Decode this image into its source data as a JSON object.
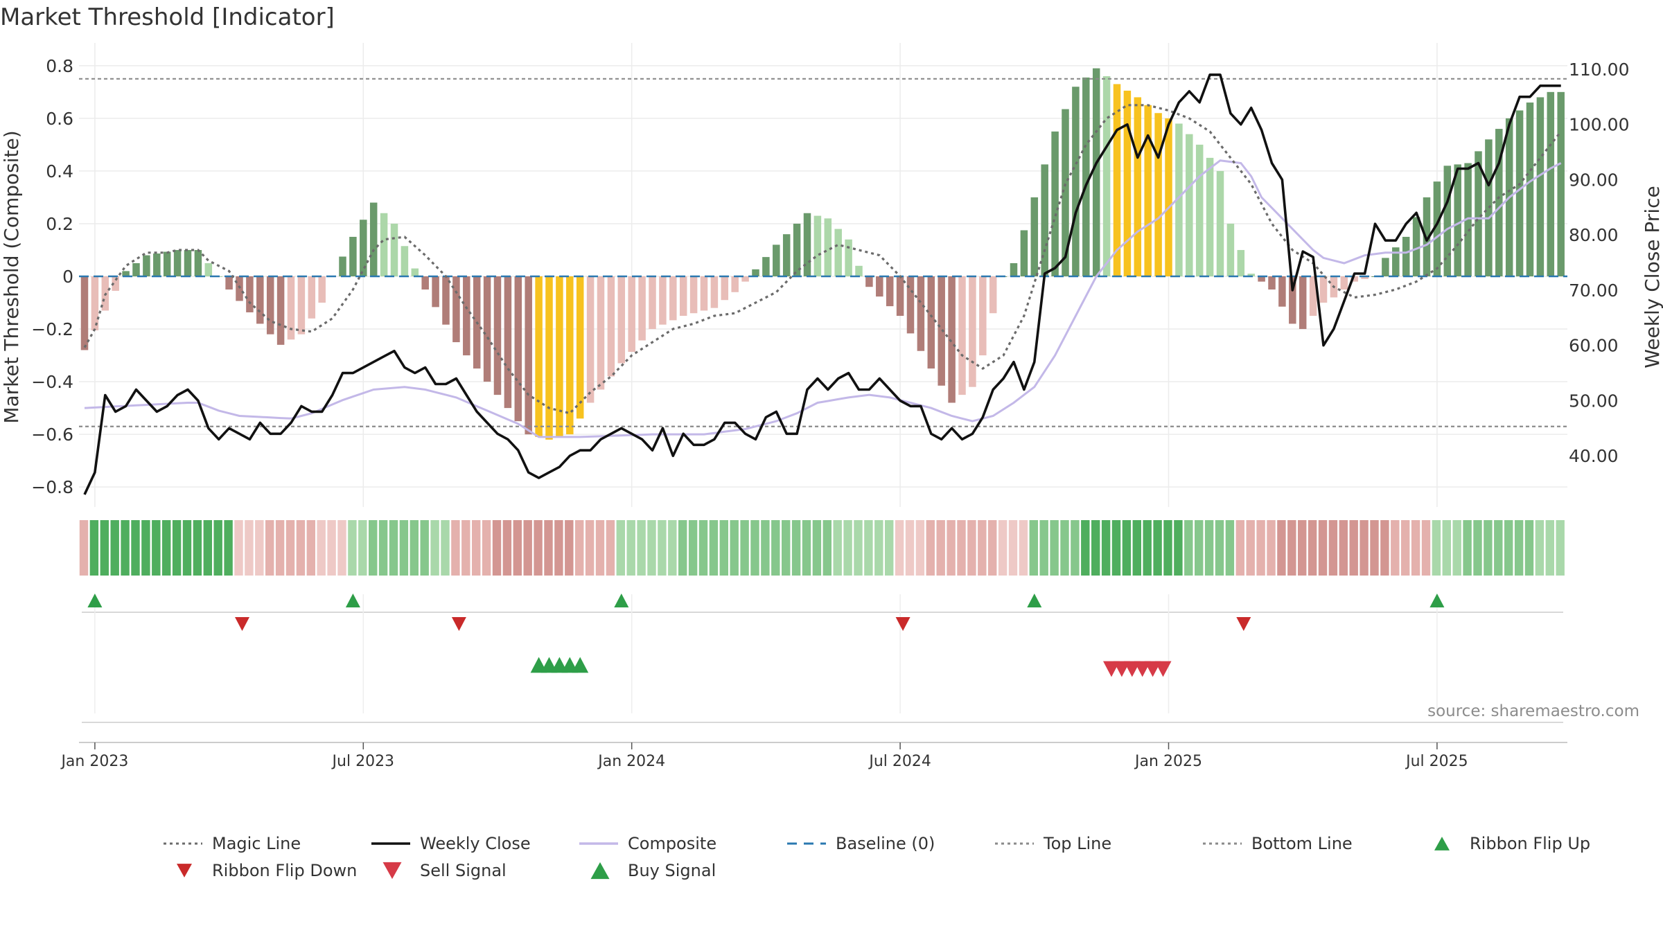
{
  "chart_data": {
    "type": "bar",
    "title": "Market Threshold [Indicator]",
    "ylabel_left": "Market Threshold (Composite)",
    "ylabel_right": "Weekly Close Price",
    "ylim_left": [
      -0.86,
      0.86
    ],
    "ylim_right": [
      31.5,
      113.5
    ],
    "yticks_left": [
      {
        "v": 0.8,
        "label": "0.8"
      },
      {
        "v": 0.6,
        "label": "0.6"
      },
      {
        "v": 0.4,
        "label": "0.4"
      },
      {
        "v": 0.2,
        "label": "0.2"
      },
      {
        "v": 0,
        "label": "0"
      },
      {
        "v": -0.2,
        "label": "−0.2"
      },
      {
        "v": -0.4,
        "label": "−0.4"
      },
      {
        "v": -0.6,
        "label": "−0.6"
      },
      {
        "v": -0.8,
        "label": "−0.8"
      }
    ],
    "yticks_right": [
      {
        "v": 110,
        "label": "110.00"
      },
      {
        "v": 100,
        "label": "100.00"
      },
      {
        "v": 90,
        "label": "90.00"
      },
      {
        "v": 80,
        "label": "80.00"
      },
      {
        "v": 70,
        "label": "70.00"
      },
      {
        "v": 60,
        "label": "60.00"
      },
      {
        "v": 50,
        "label": "50.00"
      },
      {
        "v": 40,
        "label": "40.00"
      }
    ],
    "xticks": [
      {
        "w": 1,
        "label": "Jan 2023"
      },
      {
        "w": 27,
        "label": "Jul 2023"
      },
      {
        "w": 53,
        "label": "Jan 2024"
      },
      {
        "w": 79,
        "label": "Jul 2024"
      },
      {
        "w": 105,
        "label": "Jan 2025"
      },
      {
        "w": 131,
        "label": "Jul 2025"
      }
    ],
    "top_line": 0.75,
    "bottom_line": -0.57,
    "baseline": 0,
    "bar_colors": {
      "strong_up": "#6a9a6b",
      "weak_up": "#acd7a9",
      "strong_down": "#b07d78",
      "weak_down": "#e8bdb8",
      "extreme": "#f7c21f"
    },
    "line_colors": {
      "magic": "#6b6b6b",
      "close": "#111111",
      "composite": "#c3b8e8",
      "baseline": "#2a78b0",
      "threshold": "#8a8a8a",
      "buy": "#2e9e48",
      "sell": "#d63a47",
      "flip_up": "#2e9e48",
      "flip_down": "#c92a2a"
    },
    "composite_key": [
      [
        0,
        -0.28
      ],
      [
        4,
        0.02
      ],
      [
        6,
        0.08
      ],
      [
        9,
        0.1
      ],
      [
        11,
        0.1
      ],
      [
        12,
        0.05
      ],
      [
        14,
        -0.05
      ],
      [
        17,
        -0.18
      ],
      [
        19,
        -0.26
      ],
      [
        21,
        -0.22
      ],
      [
        23,
        -0.1
      ],
      [
        24,
        0
      ],
      [
        26,
        0.15
      ],
      [
        28,
        0.28
      ],
      [
        30,
        0.2
      ],
      [
        32,
        0.03
      ],
      [
        33,
        -0.05
      ],
      [
        36,
        -0.25
      ],
      [
        40,
        -0.45
      ],
      [
        43,
        -0.6
      ],
      [
        45,
        -0.62
      ],
      [
        47,
        -0.6
      ],
      [
        49,
        -0.48
      ],
      [
        52,
        -0.33
      ],
      [
        55,
        -0.2
      ],
      [
        58,
        -0.15
      ],
      [
        61,
        -0.12
      ],
      [
        63,
        -0.06
      ],
      [
        64,
        -0.02
      ],
      [
        67,
        0.12
      ],
      [
        70,
        0.24
      ],
      [
        72,
        0.22
      ],
      [
        74,
        0.14
      ],
      [
        75,
        0.04
      ],
      [
        76,
        -0.04
      ],
      [
        79,
        -0.15
      ],
      [
        82,
        -0.35
      ],
      [
        84,
        -0.48
      ],
      [
        86,
        -0.42
      ],
      [
        87,
        -0.3
      ],
      [
        88,
        -0.14
      ],
      [
        89,
        0
      ],
      [
        90,
        0.05
      ],
      [
        92,
        0.3
      ],
      [
        94,
        0.55
      ],
      [
        96,
        0.72
      ],
      [
        98,
        0.79
      ],
      [
        100,
        0.73
      ],
      [
        102,
        0.68
      ],
      [
        104,
        0.62
      ],
      [
        106,
        0.58
      ],
      [
        108,
        0.5
      ],
      [
        110,
        0.4
      ],
      [
        111,
        0.2
      ],
      [
        112,
        0.1
      ],
      [
        113,
        0.01
      ],
      [
        115,
        -0.05
      ],
      [
        117,
        -0.18
      ],
      [
        118,
        -0.2
      ],
      [
        120,
        -0.1
      ],
      [
        121,
        -0.08
      ],
      [
        123,
        -0.02
      ],
      [
        125,
        0
      ],
      [
        126,
        0.07
      ],
      [
        128,
        0.15
      ],
      [
        130,
        0.3
      ],
      [
        132,
        0.42
      ],
      [
        134,
        0.43
      ],
      [
        136,
        0.52
      ],
      [
        138,
        0.6
      ],
      [
        140,
        0.66
      ],
      [
        142,
        0.7
      ]
    ],
    "close_key": [
      [
        0,
        33
      ],
      [
        1,
        37
      ],
      [
        2,
        51
      ],
      [
        3,
        48
      ],
      [
        4,
        49
      ],
      [
        5,
        52
      ],
      [
        6,
        50
      ],
      [
        7,
        48
      ],
      [
        8,
        49
      ],
      [
        9,
        51
      ],
      [
        10,
        52
      ],
      [
        11,
        50
      ],
      [
        12,
        45
      ],
      [
        13,
        43
      ],
      [
        14,
        45
      ],
      [
        15,
        44
      ],
      [
        16,
        43
      ],
      [
        17,
        46
      ],
      [
        18,
        44
      ],
      [
        19,
        44
      ],
      [
        20,
        46
      ],
      [
        21,
        49
      ],
      [
        22,
        48
      ],
      [
        23,
        48
      ],
      [
        24,
        51
      ],
      [
        25,
        55
      ],
      [
        26,
        55
      ],
      [
        27,
        56
      ],
      [
        28,
        57
      ],
      [
        29,
        58
      ],
      [
        30,
        59
      ],
      [
        31,
        56
      ],
      [
        32,
        55
      ],
      [
        33,
        56
      ],
      [
        34,
        53
      ],
      [
        35,
        53
      ],
      [
        36,
        54
      ],
      [
        37,
        51
      ],
      [
        38,
        48
      ],
      [
        39,
        46
      ],
      [
        40,
        44
      ],
      [
        41,
        43
      ],
      [
        42,
        41
      ],
      [
        43,
        37
      ],
      [
        44,
        36
      ],
      [
        45,
        37
      ],
      [
        46,
        38
      ],
      [
        47,
        40
      ],
      [
        48,
        41
      ],
      [
        49,
        41
      ],
      [
        50,
        43
      ],
      [
        51,
        44
      ],
      [
        52,
        45
      ],
      [
        53,
        44
      ],
      [
        54,
        43
      ],
      [
        55,
        41
      ],
      [
        56,
        45
      ],
      [
        57,
        40
      ],
      [
        58,
        44
      ],
      [
        59,
        42
      ],
      [
        60,
        42
      ],
      [
        61,
        43
      ],
      [
        62,
        46
      ],
      [
        63,
        46
      ],
      [
        64,
        44
      ],
      [
        65,
        43
      ],
      [
        66,
        47
      ],
      [
        67,
        48
      ],
      [
        68,
        44
      ],
      [
        69,
        44
      ],
      [
        70,
        52
      ],
      [
        71,
        54
      ],
      [
        72,
        52
      ],
      [
        73,
        54
      ],
      [
        74,
        55
      ],
      [
        75,
        52
      ],
      [
        76,
        52
      ],
      [
        77,
        54
      ],
      [
        78,
        52
      ],
      [
        79,
        50
      ],
      [
        80,
        49
      ],
      [
        81,
        49
      ],
      [
        82,
        44
      ],
      [
        83,
        43
      ],
      [
        84,
        45
      ],
      [
        85,
        43
      ],
      [
        86,
        44
      ],
      [
        87,
        47
      ],
      [
        88,
        52
      ],
      [
        89,
        54
      ],
      [
        90,
        57
      ],
      [
        91,
        52
      ],
      [
        92,
        57
      ],
      [
        93,
        73
      ],
      [
        94,
        74
      ],
      [
        95,
        76
      ],
      [
        96,
        84
      ],
      [
        97,
        89
      ],
      [
        98,
        93
      ],
      [
        99,
        96
      ],
      [
        100,
        99
      ],
      [
        101,
        100
      ],
      [
        102,
        94
      ],
      [
        103,
        98
      ],
      [
        104,
        94
      ],
      [
        105,
        100
      ],
      [
        106,
        104
      ],
      [
        107,
        106
      ],
      [
        108,
        104
      ],
      [
        109,
        109
      ],
      [
        110,
        109
      ],
      [
        111,
        102
      ],
      [
        112,
        100
      ],
      [
        113,
        103
      ],
      [
        114,
        99
      ],
      [
        115,
        93
      ],
      [
        116,
        90
      ],
      [
        117,
        70
      ],
      [
        118,
        77
      ],
      [
        119,
        76
      ],
      [
        120,
        60
      ],
      [
        121,
        63
      ],
      [
        122,
        68
      ],
      [
        123,
        73
      ],
      [
        124,
        73
      ],
      [
        125,
        82
      ],
      [
        126,
        79
      ],
      [
        127,
        79
      ],
      [
        128,
        82
      ],
      [
        129,
        84
      ],
      [
        130,
        79
      ],
      [
        131,
        82
      ],
      [
        132,
        86
      ],
      [
        133,
        92
      ],
      [
        134,
        92
      ],
      [
        135,
        93
      ],
      [
        136,
        89
      ],
      [
        137,
        93
      ],
      [
        138,
        100
      ],
      [
        139,
        105
      ],
      [
        140,
        105
      ],
      [
        141,
        107
      ],
      [
        142,
        107
      ],
      [
        143,
        107
      ]
    ],
    "composite_line_key": [
      [
        0,
        -0.5
      ],
      [
        10,
        -0.48
      ],
      [
        11,
        -0.48
      ],
      [
        13,
        -0.51
      ],
      [
        15,
        -0.53
      ],
      [
        20,
        -0.54
      ],
      [
        22,
        -0.52
      ],
      [
        25,
        -0.47
      ],
      [
        28,
        -0.43
      ],
      [
        31,
        -0.42
      ],
      [
        33,
        -0.43
      ],
      [
        36,
        -0.46
      ],
      [
        39,
        -0.51
      ],
      [
        42,
        -0.56
      ],
      [
        44,
        -0.61
      ],
      [
        48,
        -0.61
      ],
      [
        55,
        -0.6
      ],
      [
        60,
        -0.6
      ],
      [
        64,
        -0.58
      ],
      [
        67,
        -0.55
      ],
      [
        69,
        -0.52
      ],
      [
        71,
        -0.48
      ],
      [
        74,
        -0.46
      ],
      [
        76,
        -0.45
      ],
      [
        78,
        -0.46
      ],
      [
        80,
        -0.48
      ],
      [
        82,
        -0.5
      ],
      [
        84,
        -0.53
      ],
      [
        86,
        -0.55
      ],
      [
        88,
        -0.53
      ],
      [
        90,
        -0.48
      ],
      [
        92,
        -0.42
      ],
      [
        94,
        -0.3
      ],
      [
        96,
        -0.15
      ],
      [
        98,
        0
      ],
      [
        100,
        0.1
      ],
      [
        102,
        0.17
      ],
      [
        104,
        0.22
      ],
      [
        106,
        0.3
      ],
      [
        108,
        0.38
      ],
      [
        110,
        0.44
      ],
      [
        112,
        0.43
      ],
      [
        113,
        0.38
      ],
      [
        114,
        0.3
      ],
      [
        116,
        0.22
      ],
      [
        118,
        0.14
      ],
      [
        119,
        0.1
      ],
      [
        120,
        0.07
      ],
      [
        122,
        0.05
      ],
      [
        124,
        0.08
      ],
      [
        126,
        0.09
      ],
      [
        128,
        0.09
      ],
      [
        130,
        0.12
      ],
      [
        132,
        0.18
      ],
      [
        134,
        0.22
      ],
      [
        136,
        0.22
      ],
      [
        138,
        0.3
      ],
      [
        140,
        0.36
      ],
      [
        142,
        0.41
      ],
      [
        143,
        0.43
      ]
    ],
    "magic_line_key": [
      [
        0,
        -0.27
      ],
      [
        1,
        -0.2
      ],
      [
        2,
        -0.07
      ],
      [
        4,
        0.04
      ],
      [
        6,
        0.09
      ],
      [
        8,
        0.09
      ],
      [
        9,
        0.1
      ],
      [
        11,
        0.1
      ],
      [
        12,
        0.06
      ],
      [
        14,
        0.02
      ],
      [
        16,
        -0.1
      ],
      [
        18,
        -0.17
      ],
      [
        20,
        -0.2
      ],
      [
        22,
        -0.21
      ],
      [
        24,
        -0.16
      ],
      [
        26,
        -0.05
      ],
      [
        28,
        0.1
      ],
      [
        29,
        0.14
      ],
      [
        31,
        0.15
      ],
      [
        33,
        0.08
      ],
      [
        35,
        0
      ],
      [
        37,
        -0.12
      ],
      [
        39,
        -0.23
      ],
      [
        41,
        -0.35
      ],
      [
        43,
        -0.45
      ],
      [
        45,
        -0.5
      ],
      [
        47,
        -0.52
      ],
      [
        49,
        -0.44
      ],
      [
        51,
        -0.38
      ],
      [
        53,
        -0.3
      ],
      [
        55,
        -0.25
      ],
      [
        57,
        -0.2
      ],
      [
        59,
        -0.18
      ],
      [
        61,
        -0.15
      ],
      [
        63,
        -0.14
      ],
      [
        65,
        -0.1
      ],
      [
        67,
        -0.06
      ],
      [
        69,
        0.02
      ],
      [
        71,
        0.08
      ],
      [
        73,
        0.12
      ],
      [
        75,
        0.1
      ],
      [
        77,
        0.08
      ],
      [
        79,
        0
      ],
      [
        81,
        -0.1
      ],
      [
        83,
        -0.2
      ],
      [
        85,
        -0.3
      ],
      [
        87,
        -0.35
      ],
      [
        89,
        -0.3
      ],
      [
        91,
        -0.15
      ],
      [
        93,
        0.1
      ],
      [
        95,
        0.35
      ],
      [
        97,
        0.5
      ],
      [
        99,
        0.6
      ],
      [
        101,
        0.65
      ],
      [
        103,
        0.65
      ],
      [
        105,
        0.63
      ],
      [
        107,
        0.6
      ],
      [
        109,
        0.55
      ],
      [
        111,
        0.45
      ],
      [
        113,
        0.35
      ],
      [
        115,
        0.2
      ],
      [
        117,
        0.1
      ],
      [
        119,
        0.05
      ],
      [
        121,
        -0.04
      ],
      [
        123,
        -0.08
      ],
      [
        125,
        -0.07
      ],
      [
        127,
        -0.05
      ],
      [
        129,
        -0.02
      ],
      [
        131,
        0.03
      ],
      [
        133,
        0.12
      ],
      [
        135,
        0.22
      ],
      [
        137,
        0.3
      ],
      [
        139,
        0.35
      ],
      [
        141,
        0.45
      ],
      [
        143,
        0.55
      ]
    ],
    "extreme_ranges": [
      [
        44,
        48
      ],
      [
        100,
        105
      ]
    ],
    "ribbon_segments": [
      {
        "from": 0,
        "to": 0,
        "kind": "down",
        "level": 1
      },
      {
        "from": 1,
        "to": 14,
        "kind": "up",
        "level": 3
      },
      {
        "from": 15,
        "to": 25,
        "kind": "down",
        "level": 1
      },
      {
        "from": 26,
        "to": 35,
        "kind": "up",
        "level": 1
      },
      {
        "from": 36,
        "to": 51,
        "kind": "down",
        "level": 2
      },
      {
        "from": 52,
        "to": 78,
        "kind": "up",
        "level": 1
      },
      {
        "from": 79,
        "to": 91,
        "kind": "down",
        "level": 1
      },
      {
        "from": 92,
        "to": 111,
        "kind": "up",
        "level": 2
      },
      {
        "from": 112,
        "to": 130,
        "kind": "down",
        "level": 2
      },
      {
        "from": 131,
        "to": 143,
        "kind": "up",
        "level": 1
      }
    ],
    "ribbon_flip_up_weeks": [
      1,
      26,
      52,
      92,
      131
    ],
    "ribbon_flip_down_weeks": [
      15,
      36,
      79,
      112
    ],
    "buy_signal_weeks": [
      44,
      45,
      46,
      47,
      48
    ],
    "sell_signal_weeks": [
      100,
      101,
      102,
      103,
      104,
      105
    ],
    "legend": [
      {
        "key": "magic",
        "label": "Magic Line",
        "type": "dotted"
      },
      {
        "key": "close",
        "label": "Weekly Close",
        "type": "solid"
      },
      {
        "key": "composite",
        "label": "Composite",
        "type": "solid"
      },
      {
        "key": "baseline",
        "label": "Baseline (0)",
        "type": "dashed"
      },
      {
        "key": "threshold",
        "label": "Top Line",
        "type": "dotted"
      },
      {
        "key": "threshold",
        "label": "Bottom Line",
        "type": "dotted"
      },
      {
        "key": "flip_up",
        "label": "Ribbon Flip Up",
        "type": "tri-up"
      },
      {
        "key": "flip_down",
        "label": "Ribbon Flip Down",
        "type": "tri-down"
      },
      {
        "key": "sell",
        "label": "Sell Signal",
        "type": "tri-down-big"
      },
      {
        "key": "buy",
        "label": "Buy Signal",
        "type": "tri-up-big"
      }
    ],
    "source_text": "source: sharemaestro.com"
  }
}
